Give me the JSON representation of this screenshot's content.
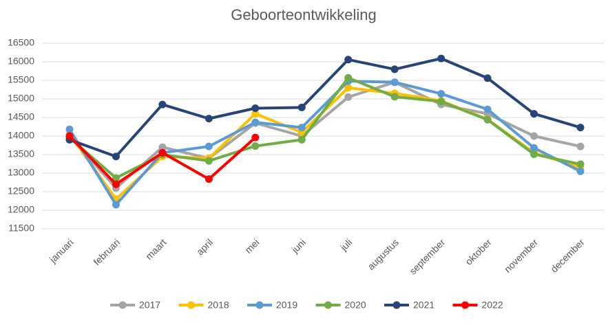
{
  "chart_data": {
    "type": "line",
    "title": "Geboorteontwikkeling",
    "categories": [
      "januari",
      "februari",
      "maart",
      "april",
      "mei",
      "juni",
      "juli",
      "augustus",
      "september",
      "oktober",
      "november",
      "december"
    ],
    "series": [
      {
        "name": "2017",
        "color": "#a5a5a5",
        "values": [
          14000,
          12600,
          13700,
          13400,
          14350,
          14000,
          15050,
          15450,
          14850,
          14600,
          14000,
          13720
        ]
      },
      {
        "name": "2018",
        "color": "#ffc000",
        "values": [
          14050,
          12300,
          13450,
          13400,
          14600,
          14100,
          15300,
          15150,
          14950,
          14450,
          13550,
          13150
        ]
      },
      {
        "name": "2019",
        "color": "#5b9bd5",
        "values": [
          14180,
          12150,
          13550,
          13720,
          14370,
          14230,
          15480,
          15450,
          15140,
          14720,
          13680,
          13050
        ]
      },
      {
        "name": "2020",
        "color": "#70ad47",
        "values": [
          13950,
          12870,
          13500,
          13330,
          13730,
          13900,
          15570,
          15060,
          14930,
          14440,
          13510,
          13240
        ]
      },
      {
        "name": "2021",
        "color": "#264478",
        "values": [
          13900,
          13450,
          14850,
          14470,
          14750,
          14770,
          16060,
          15800,
          16090,
          15560,
          14600,
          14230
        ]
      },
      {
        "name": "2022",
        "color": "#ff0000",
        "values": [
          14000,
          12700,
          13550,
          12840,
          13960,
          null,
          null,
          null,
          null,
          null,
          null,
          null
        ]
      }
    ],
    "ylim": [
      11500,
      16500
    ],
    "yticks": [
      11500,
      12000,
      12500,
      13000,
      13500,
      14000,
      14500,
      15000,
      15500,
      16000,
      16500
    ],
    "grid": true,
    "legend": "bottom"
  }
}
